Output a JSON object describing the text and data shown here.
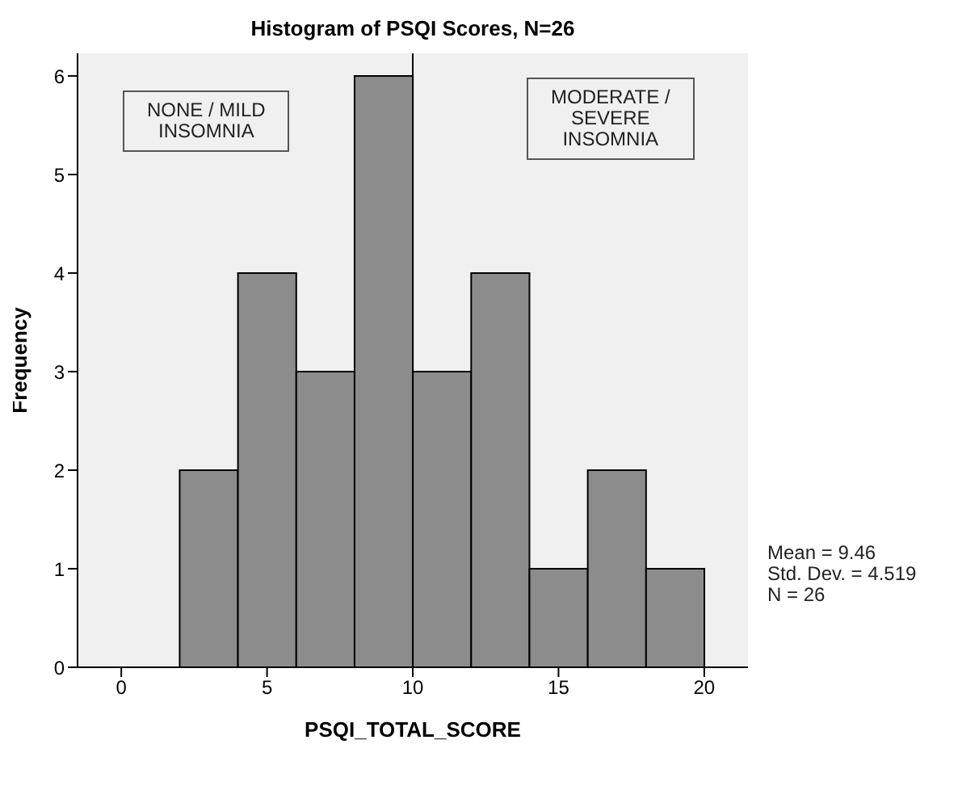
{
  "chart_data": {
    "type": "histogram",
    "title": "Histogram of PSQI Scores, N=26",
    "xlabel": "PSQI_TOTAL_SCORE",
    "ylabel": "Frequency",
    "bins": [
      2,
      4,
      6,
      8,
      10,
      12,
      14,
      16,
      18,
      20
    ],
    "values": [
      2,
      4,
      3,
      6,
      3,
      4,
      1,
      2,
      1
    ],
    "color": "#8c8c8c",
    "xlim": [
      -1.5,
      21.5
    ],
    "xticks": [
      0,
      5,
      10,
      15,
      20
    ],
    "ylim": [
      0,
      6.23
    ],
    "yticks": [
      0,
      1,
      2,
      3,
      4,
      5,
      6
    ],
    "ref_lines": [
      {
        "axis": "x",
        "value": 10,
        "color": "#000000"
      }
    ],
    "annotations": [
      "NONE / MILD\nINSOMNIA",
      "MODERATE /\nSEVERE\nINSOMNIA",
      "Mean = 9.46\nStd. Dev. = 4.519\nN = 26"
    ]
  }
}
